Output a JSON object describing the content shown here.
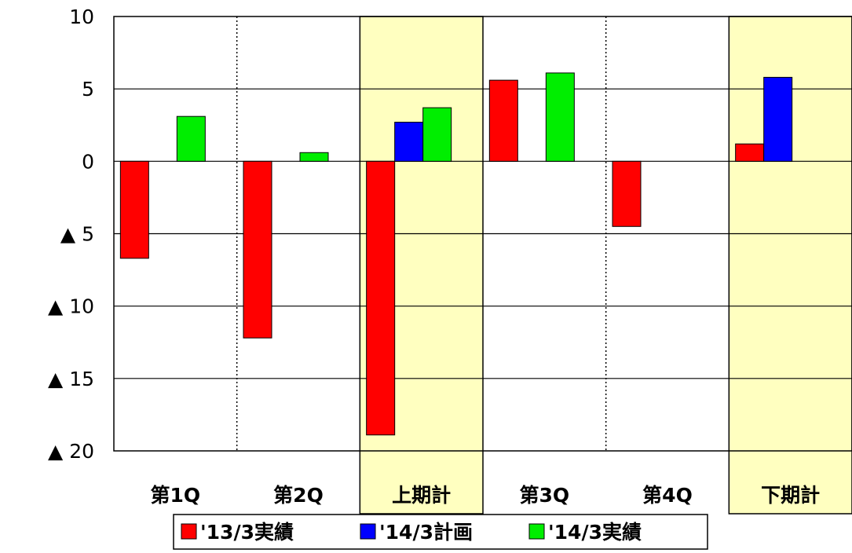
{
  "chart_data": {
    "type": "bar",
    "categories": [
      "第1Q",
      "第2Q",
      "上期計",
      "第3Q",
      "第4Q",
      "下期計"
    ],
    "highlighted_categories": [
      "上期計",
      "下期計"
    ],
    "highlight_color": "#ffffc0",
    "series": [
      {
        "name": "'13/3実績",
        "color": "#ff0000",
        "values": [
          -6.7,
          -12.2,
          -18.9,
          5.6,
          -4.5,
          1.2
        ]
      },
      {
        "name": "'14/3計画",
        "color": "#0000ff",
        "values": [
          null,
          null,
          2.7,
          null,
          null,
          5.8
        ]
      },
      {
        "name": "'14/3実績",
        "color": "#00ee00",
        "values": [
          3.1,
          0.6,
          3.7,
          6.1,
          null,
          null
        ]
      }
    ],
    "ylim": [
      -20,
      10
    ],
    "yticks": [
      {
        "value": 10,
        "label": "10"
      },
      {
        "value": 5,
        "label": "5"
      },
      {
        "value": 0,
        "label": "0"
      },
      {
        "value": -5,
        "label": "▲ 5"
      },
      {
        "value": -10,
        "label": "▲ 10"
      },
      {
        "value": -15,
        "label": "▲ 15"
      },
      {
        "value": -20,
        "label": "▲ 20"
      }
    ],
    "grid": true,
    "legend_position": "bottom-center",
    "title": "",
    "xlabel": "",
    "ylabel": ""
  }
}
